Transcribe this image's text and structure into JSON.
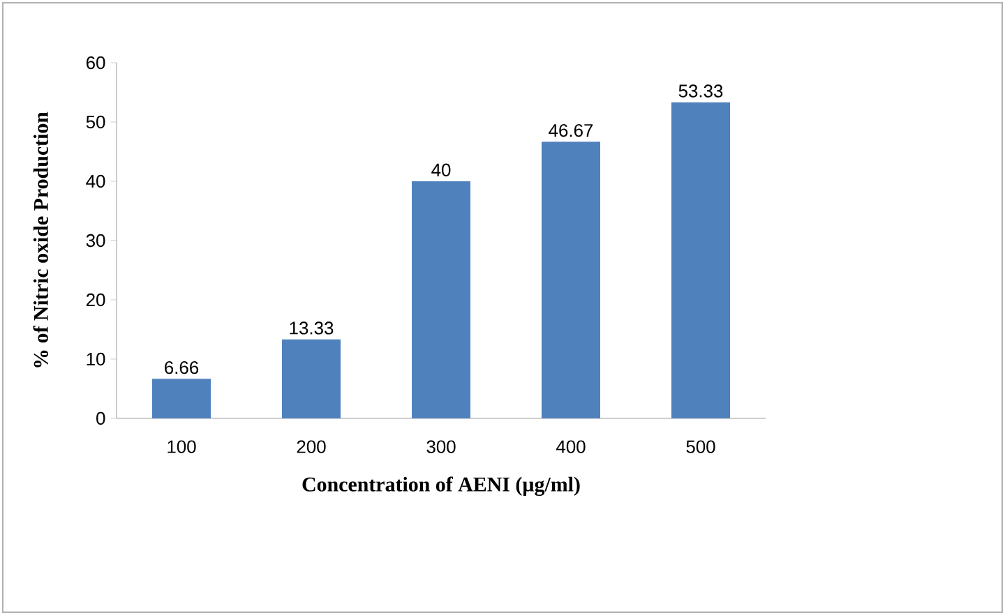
{
  "chart_data": {
    "type": "bar",
    "categories": [
      "100",
      "200",
      "300",
      "400",
      "500"
    ],
    "values": [
      6.66,
      13.33,
      40,
      46.67,
      53.33
    ],
    "color": "#4f81bd",
    "ylim": [
      0,
      60
    ],
    "yticks": [
      0,
      10,
      20,
      30,
      40,
      50,
      60
    ],
    "data_labels": true,
    "xlabel": "Concentration of  AENI (µg/ml)",
    "ylabel": "% of Nitric oxide Production"
  }
}
